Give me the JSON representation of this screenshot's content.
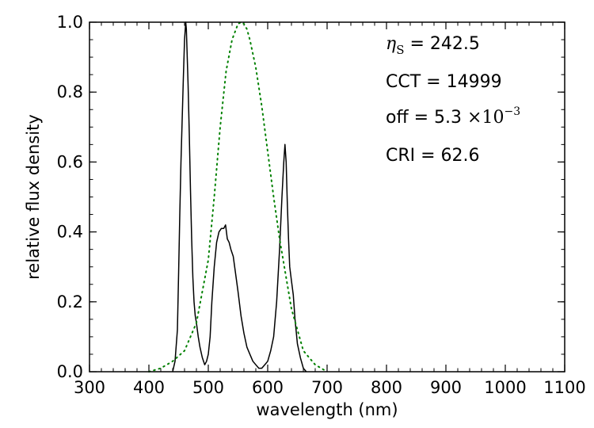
{
  "chart_data": {
    "type": "line",
    "title": "",
    "xlabel": "wavelength (nm)",
    "ylabel": "relative flux density",
    "xlim": [
      300,
      1100
    ],
    "ylim": [
      0.0,
      1.0
    ],
    "x_ticks": [
      300,
      400,
      500,
      600,
      700,
      800,
      900,
      1000,
      1100
    ],
    "x_tick_labels": [
      "300",
      "400",
      "500",
      "600",
      "700",
      "800",
      "900",
      "1000",
      "1100"
    ],
    "y_ticks": [
      0.0,
      0.2,
      0.4,
      0.6,
      0.8,
      1.0
    ],
    "y_tick_labels": [
      "0.0",
      "0.2",
      "0.4",
      "0.6",
      "0.8",
      "1.0"
    ],
    "grid": false,
    "series": [
      {
        "style": "solid",
        "color": "#000000",
        "x": [
          440,
          444,
          448,
          450,
          452,
          454,
          456,
          458,
          460,
          462,
          463,
          464,
          466,
          468,
          470,
          472,
          474,
          476,
          478,
          480,
          483,
          486,
          490,
          494,
          497,
          500,
          503,
          506,
          510,
          514,
          518,
          522,
          526,
          529,
          532,
          535,
          538,
          542,
          546,
          550,
          555,
          560,
          565,
          570,
          575,
          580,
          585,
          590,
          595,
          600,
          605,
          610,
          615,
          620,
          624,
          627,
          629,
          631,
          633,
          635,
          637,
          640,
          643,
          646,
          650,
          655,
          660,
          665
        ],
        "y": [
          0.0,
          0.03,
          0.12,
          0.28,
          0.45,
          0.6,
          0.72,
          0.84,
          0.95,
          1.0,
          0.98,
          0.93,
          0.82,
          0.68,
          0.52,
          0.38,
          0.27,
          0.2,
          0.16,
          0.14,
          0.1,
          0.07,
          0.04,
          0.02,
          0.03,
          0.05,
          0.1,
          0.2,
          0.3,
          0.37,
          0.4,
          0.41,
          0.41,
          0.42,
          0.38,
          0.37,
          0.35,
          0.33,
          0.28,
          0.23,
          0.16,
          0.11,
          0.07,
          0.05,
          0.03,
          0.02,
          0.01,
          0.01,
          0.02,
          0.03,
          0.06,
          0.1,
          0.2,
          0.35,
          0.5,
          0.6,
          0.65,
          0.6,
          0.48,
          0.38,
          0.3,
          0.26,
          0.22,
          0.15,
          0.08,
          0.04,
          0.01,
          0.0
        ]
      },
      {
        "style": "dotted",
        "color": "#008000",
        "x": [
          400,
          420,
          440,
          460,
          480,
          500,
          510,
          520,
          530,
          540,
          550,
          555,
          560,
          565,
          570,
          580,
          590,
          600,
          610,
          620,
          640,
          660,
          680,
          700
        ],
        "y": [
          0.0,
          0.01,
          0.03,
          0.06,
          0.14,
          0.32,
          0.5,
          0.7,
          0.86,
          0.95,
          0.995,
          1.0,
          0.995,
          0.98,
          0.95,
          0.87,
          0.76,
          0.63,
          0.5,
          0.38,
          0.18,
          0.06,
          0.02,
          0.0
        ]
      }
    ],
    "annotations": {
      "eta": {
        "symbol": "η",
        "subscript": "S",
        "text": " = 242.5"
      },
      "cct": "CCT = 14999",
      "off": {
        "prefix": "off = 5.3 ",
        "times": "×10",
        "exponent": "−3"
      },
      "cri": "CRI = 62.6"
    }
  }
}
